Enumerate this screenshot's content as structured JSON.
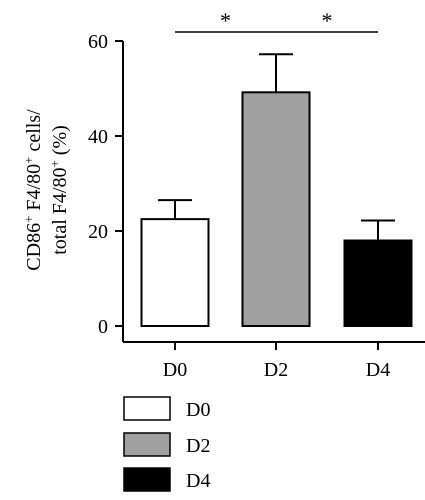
{
  "chart_data": {
    "type": "bar",
    "categories": [
      "D0",
      "D2",
      "D4"
    ],
    "values": [
      22.5,
      49.2,
      18.0
    ],
    "error": [
      4.0,
      8.0,
      4.2
    ],
    "bar_colors": [
      "#ffffff",
      "#a0a0a0",
      "#000000"
    ],
    "ylabel_line1": "CD86+ F4/80+ cells/",
    "ylabel_line2": "total F4/80+ (%)",
    "ylim": [
      0,
      60
    ],
    "yticks": [
      "0",
      "20",
      "40",
      "60"
    ],
    "significance": [
      {
        "from": "D0",
        "to": "D2",
        "label": "*"
      },
      {
        "from": "D2",
        "to": "D4",
        "label": "*"
      }
    ],
    "legend": [
      {
        "label": "D0",
        "color": "#ffffff"
      },
      {
        "label": "D2",
        "color": "#a0a0a0"
      },
      {
        "label": "D4",
        "color": "#000000"
      }
    ],
    "legend_position": "bottom"
  }
}
